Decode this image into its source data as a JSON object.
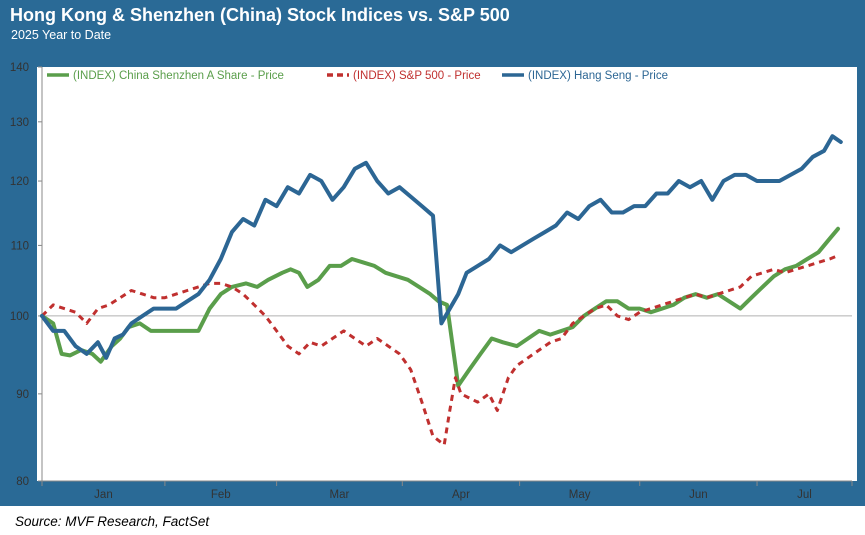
{
  "header": {
    "title": "Hong Kong & Shenzhen (China) Stock Indices vs. S&P 500",
    "subtitle": "2025 Year to Date"
  },
  "footer": {
    "source": "Source: MVF Research, FactSet"
  },
  "colors": {
    "frame": "#2a6a96",
    "green": "#5a9e4b",
    "red": "#c0302f",
    "blue": "#2c6694"
  },
  "chart_data": {
    "type": "line",
    "title": "Hong Kong & Shenzhen (China) Stock Indices vs. S&P 500",
    "subtitle": "2025 Year to Date",
    "y_scale": "log",
    "ylim": [
      80,
      140
    ],
    "y_ticks": [
      80,
      90,
      100,
      110,
      120,
      130,
      140
    ],
    "y_tick_labels": [
      "80",
      "90",
      "100",
      "110",
      "120",
      "130",
      "140"
    ],
    "x_tick_labels": [
      "Jan",
      "Feb",
      "Mar",
      "Apr",
      "May",
      "Jun",
      "Jul"
    ],
    "x_unit": "week of 2025 (0 = Jan 1)",
    "xlim": [
      0,
      29
    ],
    "reference_line": 100,
    "grid": false,
    "legend": "top",
    "series": [
      {
        "name": "(INDEX) China Shenzhen A Share - Price",
        "color": "#5a9e4b",
        "style": "solid",
        "x": [
          0,
          0.4,
          0.7,
          1.0,
          1.4,
          1.8,
          2.1,
          2.5,
          2.8,
          3.1,
          3.5,
          3.9,
          4.3,
          4.8,
          5.2,
          5.6,
          6.0,
          6.4,
          6.8,
          7.3,
          7.7,
          8.1,
          8.6,
          8.9,
          9.2,
          9.5,
          9.9,
          10.3,
          10.7,
          11.1,
          11.5,
          11.9,
          12.3,
          12.7,
          13.1,
          13.5,
          13.9,
          14.2,
          14.5,
          14.9,
          15.3,
          15.7,
          16.1,
          16.5,
          17.0,
          17.4,
          17.8,
          18.2,
          18.6,
          19.0,
          19.4,
          19.8,
          20.2,
          20.6,
          21.0,
          21.4,
          21.8,
          22.2,
          22.6,
          23.0,
          23.4,
          23.8,
          24.2,
          24.6,
          25.0,
          25.4,
          25.8,
          26.2,
          26.6,
          27.0,
          27.4,
          27.8,
          28.2,
          28.5
        ],
        "values": [
          100,
          99,
          95,
          94.8,
          95.5,
          95,
          94,
          96,
          97,
          98.5,
          99,
          98,
          98,
          98,
          98,
          98,
          101,
          103,
          104,
          104.5,
          104,
          105,
          106,
          106.5,
          106,
          104,
          105,
          107,
          107,
          108,
          107.5,
          107,
          106,
          105.5,
          105,
          104,
          103,
          102,
          101.5,
          91,
          93,
          95,
          97,
          96.5,
          96,
          97,
          98,
          97.5,
          98,
          98.5,
          100,
          101,
          102,
          102,
          101,
          101,
          100.5,
          101,
          101.5,
          102.5,
          103,
          102.5,
          103,
          102,
          101,
          102.5,
          104,
          105.5,
          106.5,
          107,
          108,
          109,
          111,
          112.5
        ]
      },
      {
        "name": "(INDEX) S&P 500 - Price",
        "color": "#c0302f",
        "style": "dashed",
        "x": [
          0,
          0.4,
          0.8,
          1.2,
          1.6,
          2.0,
          2.4,
          2.8,
          3.2,
          3.6,
          4.0,
          4.4,
          4.8,
          5.2,
          5.6,
          6.0,
          6.4,
          6.8,
          7.2,
          7.6,
          8.0,
          8.4,
          8.8,
          9.2,
          9.6,
          10.0,
          10.4,
          10.8,
          11.2,
          11.6,
          12.0,
          12.4,
          12.8,
          13.2,
          13.6,
          14.0,
          14.4,
          14.6,
          14.8,
          15.0,
          15.3,
          15.6,
          16.0,
          16.3,
          16.7,
          17.0,
          17.4,
          17.8,
          18.2,
          18.6,
          19.0,
          19.4,
          19.8,
          20.2,
          20.6,
          21.0,
          21.4,
          21.8,
          22.2,
          22.6,
          23.0,
          23.4,
          23.8,
          24.2,
          24.6,
          25.0,
          25.4,
          25.8,
          26.2,
          26.6,
          27.0,
          27.4,
          27.8,
          28.2,
          28.5
        ],
        "values": [
          100,
          101.5,
          101,
          100.5,
          99,
          101,
          101.5,
          102.5,
          103.5,
          103,
          102.5,
          102.5,
          103,
          103.5,
          104,
          104.5,
          104.5,
          104,
          103,
          101.5,
          100,
          98,
          96,
          95,
          96.5,
          96,
          97,
          98,
          97,
          96,
          97,
          96,
          95,
          93,
          89,
          85,
          84,
          88,
          92,
          90,
          89.5,
          89,
          90,
          88,
          92,
          93.5,
          94.5,
          95.5,
          96.5,
          97,
          99,
          100,
          101,
          101.5,
          100,
          99.5,
          100.5,
          101,
          101.5,
          102,
          102.5,
          103,
          102.5,
          103,
          103.5,
          104,
          105.5,
          106,
          106.5,
          106,
          106.5,
          107,
          107.5,
          108,
          108.5
        ]
      },
      {
        "name": "(INDEX) Hang Seng - Price",
        "color": "#2c6694",
        "style": "solid",
        "x": [
          0,
          0.4,
          0.8,
          1.2,
          1.6,
          2.0,
          2.3,
          2.6,
          2.9,
          3.2,
          3.6,
          4.0,
          4.4,
          4.8,
          5.2,
          5.6,
          6.0,
          6.4,
          6.8,
          7.2,
          7.6,
          8.0,
          8.4,
          8.8,
          9.2,
          9.6,
          10.0,
          10.4,
          10.8,
          11.2,
          11.6,
          12.0,
          12.4,
          12.8,
          13.2,
          13.6,
          14.0,
          14.3,
          14.6,
          14.9,
          15.2,
          15.6,
          16.0,
          16.4,
          16.8,
          17.2,
          17.6,
          18.0,
          18.4,
          18.8,
          19.2,
          19.6,
          20.0,
          20.4,
          20.8,
          21.2,
          21.6,
          22.0,
          22.4,
          22.8,
          23.2,
          23.6,
          24.0,
          24.4,
          24.8,
          25.2,
          25.6,
          26.0,
          26.4,
          26.8,
          27.2,
          27.6,
          28.0,
          28.3,
          28.6
        ],
        "values": [
          100,
          98,
          98,
          96,
          95,
          96.5,
          94.5,
          97,
          97.5,
          99,
          100,
          101,
          101,
          101,
          102,
          103,
          105,
          108,
          112,
          114,
          113,
          117,
          116,
          119,
          118,
          121,
          120,
          117,
          119,
          122,
          123,
          120,
          118,
          119,
          117.5,
          116,
          114.5,
          99,
          101,
          103,
          106,
          107,
          108,
          110,
          109,
          110,
          111,
          112,
          113,
          115,
          114,
          116,
          117,
          115,
          115,
          116,
          116,
          118,
          118,
          120,
          119,
          120,
          117,
          120,
          121,
          121,
          120,
          120,
          120,
          121,
          122,
          124,
          125,
          127.5,
          126.5
        ]
      }
    ]
  }
}
